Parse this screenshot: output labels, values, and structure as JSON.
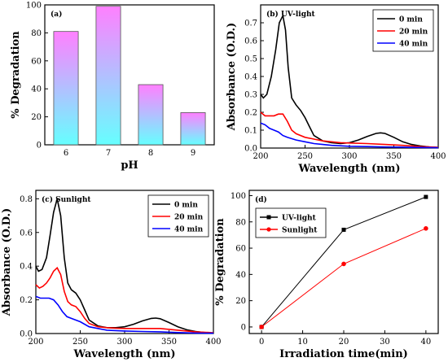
{
  "chart_data": [
    {
      "type": "bar",
      "panel_label": "(a)",
      "categories": [
        "6",
        "7",
        "8",
        "9"
      ],
      "values": [
        81,
        99,
        43,
        23
      ],
      "xlabel": "pH",
      "ylabel": "% Degradation",
      "ylim": [
        0,
        100
      ],
      "yticks": [
        "0",
        "20",
        "40",
        "60",
        "80",
        "100"
      ],
      "colors": {
        "bar_top": "#ff80ff",
        "bar_bottom": "#66ffff",
        "edge": "#444444"
      }
    },
    {
      "type": "line",
      "panel_label": "(b) UV-light",
      "xlabel": "Wavelength (nm)",
      "ylabel": "Absorbance (O.D.)",
      "xlim": [
        200,
        400
      ],
      "ylim": [
        0,
        0.8
      ],
      "xticks": [
        "200",
        "250",
        "300",
        "350",
        "400"
      ],
      "yticks": [
        "0.0",
        "0.1",
        "0.2",
        "0.3",
        "0.4",
        "0.5",
        "0.6",
        "0.7"
      ],
      "legend_position": "top-right",
      "series": [
        {
          "name": "0 min",
          "color": "#000000",
          "x": [
            200,
            203,
            207,
            212,
            217,
            221,
            225,
            228,
            231,
            235,
            240,
            245,
            250,
            255,
            260,
            270,
            280,
            290,
            300,
            310,
            320,
            330,
            335,
            340,
            350,
            360,
            370,
            380,
            390,
            400
          ],
          "y": [
            0.3,
            0.28,
            0.3,
            0.4,
            0.55,
            0.7,
            0.74,
            0.66,
            0.45,
            0.28,
            0.24,
            0.21,
            0.17,
            0.12,
            0.07,
            0.04,
            0.03,
            0.025,
            0.03,
            0.045,
            0.065,
            0.082,
            0.085,
            0.082,
            0.06,
            0.035,
            0.02,
            0.012,
            0.006,
            0.003
          ]
        },
        {
          "name": "20 min",
          "color": "#ff0000",
          "x": [
            200,
            205,
            210,
            215,
            220,
            225,
            230,
            235,
            240,
            250,
            260,
            270,
            280,
            290,
            300,
            320,
            340,
            360,
            380,
            400
          ],
          "y": [
            0.2,
            0.18,
            0.18,
            0.18,
            0.19,
            0.19,
            0.15,
            0.1,
            0.08,
            0.06,
            0.05,
            0.04,
            0.035,
            0.03,
            0.028,
            0.025,
            0.02,
            0.015,
            0.008,
            0.004
          ]
        },
        {
          "name": "40 min",
          "color": "#0000ff",
          "x": [
            200,
            205,
            210,
            215,
            220,
            225,
            230,
            240,
            250,
            260,
            270,
            280,
            300,
            320,
            340,
            360,
            380,
            400
          ],
          "y": [
            0.14,
            0.13,
            0.11,
            0.1,
            0.09,
            0.07,
            0.06,
            0.045,
            0.035,
            0.025,
            0.02,
            0.015,
            0.01,
            0.008,
            0.006,
            0.005,
            0.003,
            0.002
          ]
        }
      ]
    },
    {
      "type": "line",
      "panel_label": "(c) Sunlight",
      "xlabel": "Wavelength (nm)",
      "ylabel": "Absorbance (O.D.)",
      "xlim": [
        200,
        400
      ],
      "ylim": [
        0,
        0.85
      ],
      "xticks": [
        "200",
        "250",
        "300",
        "350",
        "400"
      ],
      "yticks": [
        "0.0",
        "0.2",
        "0.4",
        "0.6",
        "0.8"
      ],
      "legend_position": "top-right",
      "series": [
        {
          "name": "0 min",
          "color": "#000000",
          "x": [
            200,
            203,
            207,
            212,
            216,
            220,
            224,
            228,
            232,
            236,
            240,
            245,
            250,
            255,
            260,
            270,
            280,
            290,
            300,
            310,
            320,
            330,
            335,
            340,
            350,
            360,
            370,
            380,
            390,
            400
          ],
          "y": [
            0.4,
            0.37,
            0.38,
            0.45,
            0.58,
            0.72,
            0.8,
            0.7,
            0.45,
            0.3,
            0.26,
            0.24,
            0.2,
            0.14,
            0.08,
            0.045,
            0.035,
            0.035,
            0.04,
            0.055,
            0.075,
            0.09,
            0.092,
            0.088,
            0.065,
            0.04,
            0.022,
            0.012,
            0.006,
            0.003
          ]
        },
        {
          "name": "20 min",
          "color": "#ff0000",
          "x": [
            200,
            204,
            208,
            212,
            216,
            220,
            224,
            228,
            232,
            236,
            240,
            245,
            250,
            255,
            260,
            270,
            280,
            290,
            300,
            320,
            340,
            360,
            380,
            400
          ],
          "y": [
            0.29,
            0.27,
            0.28,
            0.3,
            0.33,
            0.37,
            0.39,
            0.35,
            0.25,
            0.19,
            0.17,
            0.16,
            0.13,
            0.09,
            0.06,
            0.04,
            0.035,
            0.032,
            0.03,
            0.03,
            0.03,
            0.02,
            0.01,
            0.005
          ]
        },
        {
          "name": "40 min",
          "color": "#0000ff",
          "x": [
            200,
            205,
            210,
            215,
            220,
            225,
            230,
            235,
            240,
            250,
            260,
            270,
            280,
            300,
            320,
            340,
            360,
            380,
            400
          ],
          "y": [
            0.22,
            0.21,
            0.21,
            0.21,
            0.2,
            0.17,
            0.13,
            0.1,
            0.09,
            0.07,
            0.04,
            0.03,
            0.02,
            0.015,
            0.012,
            0.01,
            0.006,
            0.003,
            0.002
          ]
        }
      ]
    },
    {
      "type": "line",
      "panel_label": "(d)",
      "xlabel": "Irradiation time(min)",
      "ylabel": "% Degradation",
      "xlim": [
        -3,
        43
      ],
      "ylim": [
        -5,
        104
      ],
      "xticks": [
        "0",
        "10",
        "20",
        "30",
        "40"
      ],
      "yticks": [
        "0",
        "20",
        "40",
        "60",
        "80",
        "100"
      ],
      "legend_position": "top-left",
      "series": [
        {
          "name": "UV-light",
          "color": "#000000",
          "marker": "square",
          "x": [
            0,
            20,
            40
          ],
          "y": [
            0,
            74,
            99
          ]
        },
        {
          "name": "Sunlight",
          "color": "#ff0000",
          "marker": "circle",
          "x": [
            0,
            20,
            40
          ],
          "y": [
            0,
            48,
            75
          ]
        }
      ]
    }
  ]
}
